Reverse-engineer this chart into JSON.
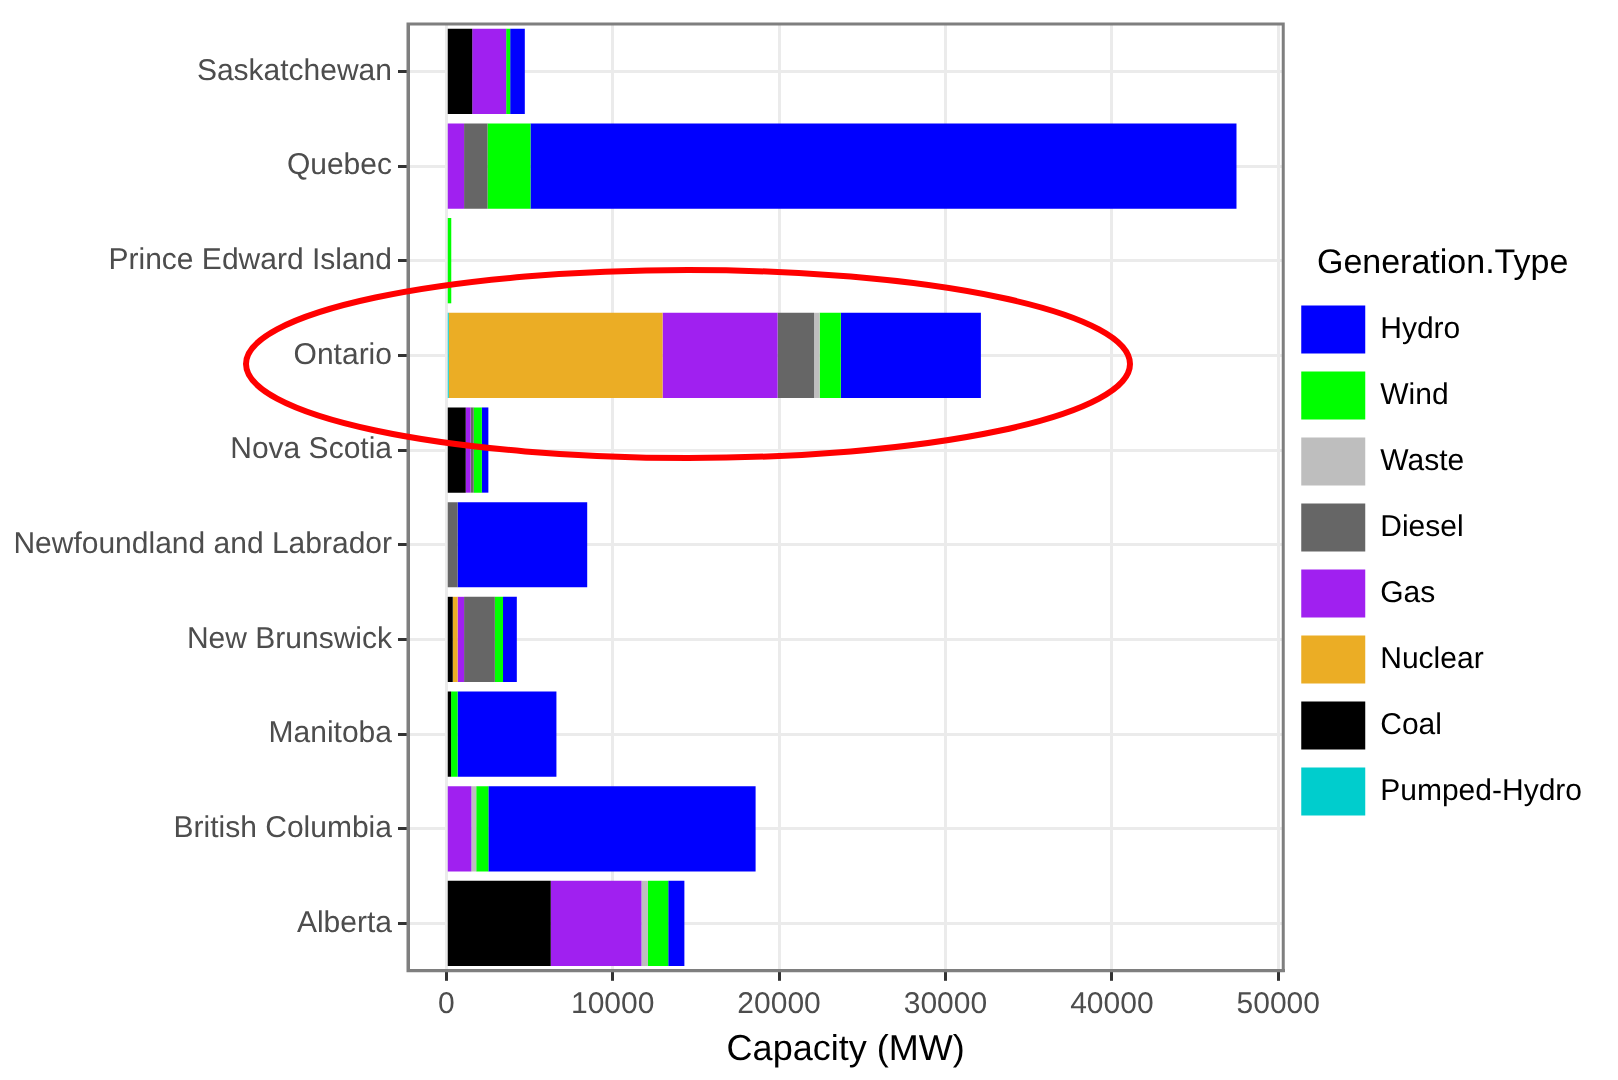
{
  "chart_data": {
    "type": "bar",
    "orientation": "horizontal",
    "stacked": true,
    "xlabel": "Capacity (MW)",
    "legend_title": "Generation.Type",
    "legend": "right",
    "grid": true,
    "categories": [
      "Saskatchewan",
      "Quebec",
      "Prince Edward Island",
      "Ontario",
      "Nova Scotia",
      "Newfoundland and Labrador",
      "New Brunswick",
      "Manitoba",
      "British Columbia",
      "Alberta"
    ],
    "xlim": [
      -2300,
      50300
    ],
    "xticks": [
      0,
      10000,
      20000,
      30000,
      40000,
      50000
    ],
    "series": [
      {
        "name": "Pumped-Hydro",
        "color": "#00cdcd",
        "values": [
          0,
          0,
          0,
          150,
          0,
          0,
          0,
          0,
          0,
          0
        ]
      },
      {
        "name": "Coal",
        "color": "#000000",
        "values": [
          1560,
          0,
          0,
          0,
          1170,
          0,
          390,
          290,
          0,
          6280
        ]
      },
      {
        "name": "Nuclear",
        "color": "#ebad25",
        "values": [
          0,
          0,
          0,
          12850,
          0,
          0,
          290,
          0,
          0,
          0
        ]
      },
      {
        "name": "Gas",
        "color": "#a020f0",
        "values": [
          2040,
          1070,
          0,
          6910,
          290,
          0,
          390,
          0,
          1510,
          5450
        ]
      },
      {
        "name": "Diesel",
        "color": "#666666",
        "values": [
          0,
          1410,
          0,
          2190,
          190,
          680,
          1850,
          0,
          0,
          0
        ]
      },
      {
        "name": "Waste",
        "color": "#bebebe",
        "values": [
          0,
          0,
          0,
          340,
          0,
          0,
          0,
          0,
          290,
          390
        ]
      },
      {
        "name": "Wind",
        "color": "#00ff00",
        "values": [
          240,
          2580,
          300,
          1270,
          490,
          0,
          490,
          390,
          730,
          1220
        ]
      },
      {
        "name": "Hydro",
        "color": "#0000ff",
        "values": [
          880,
          42430,
          0,
          8420,
          390,
          7790,
          830,
          5940,
          16060,
          970
        ]
      }
    ]
  }
}
